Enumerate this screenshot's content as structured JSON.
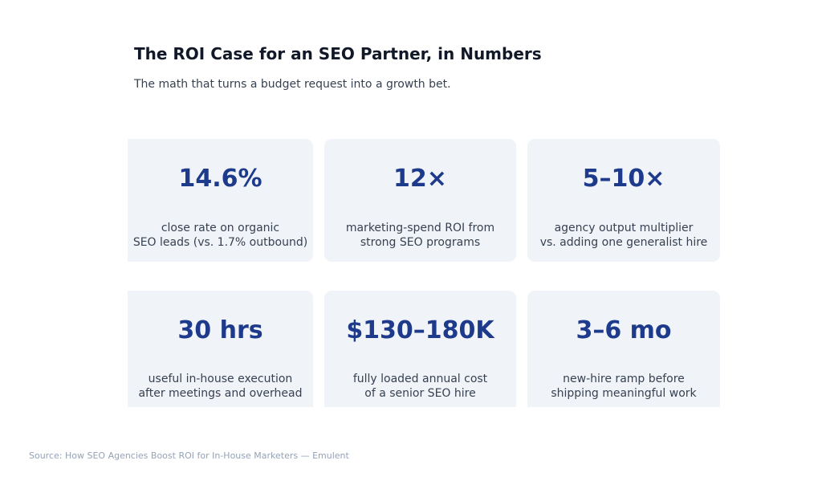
{
  "header": {
    "title": "The ROI Case for an SEO Partner, in Numbers",
    "subtitle": "The math that turns a budget request into a growth bet."
  },
  "cards": [
    {
      "value": "14.6%",
      "desc": "close rate on organic\nSEO leads (vs. 1.7% outbound)"
    },
    {
      "value": "12×",
      "desc": "marketing-spend ROI from\nstrong SEO programs"
    },
    {
      "value": "5–10×",
      "desc": "agency output multiplier\nvs. adding one generalist hire"
    },
    {
      "value": "30 hrs",
      "desc": "useful in-house execution\nafter meetings and overhead"
    },
    {
      "value": "$130–180K",
      "desc": "fully loaded annual cost\nof a senior SEO hire"
    },
    {
      "value": "3–6 mo",
      "desc": "new-hire ramp before\nshipping meaningful work"
    }
  ],
  "source": "Source: How SEO Agencies Boost ROI for In-House Marketers — Emulent",
  "colors": {
    "value": "#1e3a8a",
    "card_bg": "#f0f3f8",
    "title": "#111827"
  }
}
